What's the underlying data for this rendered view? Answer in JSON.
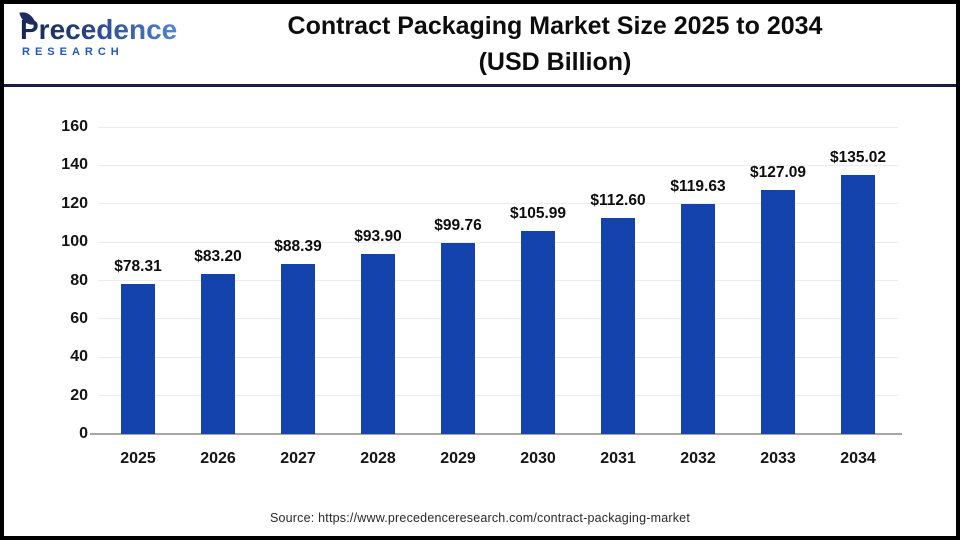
{
  "logo": {
    "brand": "Precedence",
    "sub": "RESEARCH"
  },
  "header": {
    "title_line1": "Contract Packaging Market Size 2025 to 2034",
    "title_line2": "(USD Billion)"
  },
  "source": "Source: https://www.precedenceresearch.com/contract-packaging-market",
  "colors": {
    "bar": "#1543ae",
    "divider": "#1a1a4a",
    "grid": "#ececec",
    "axis": "#a6a6a6",
    "logo_dark": "#1e2c5e",
    "logo_light": "#4e85d8",
    "research_blue": "#2257c4"
  },
  "chart_data": {
    "type": "bar",
    "title": "Contract Packaging Market Size 2025 to 2034 (USD Billion)",
    "categories": [
      "2025",
      "2026",
      "2027",
      "2028",
      "2029",
      "2030",
      "2031",
      "2032",
      "2033",
      "2034"
    ],
    "values": [
      78.31,
      83.2,
      88.39,
      93.9,
      99.76,
      105.99,
      112.6,
      119.63,
      127.09,
      135.02
    ],
    "value_labels": [
      "$78.31",
      "$83.20",
      "$88.39",
      "$93.90",
      "$99.76",
      "$105.99",
      "$112.60",
      "$119.63",
      "$127.09",
      "$135.02"
    ],
    "xlabel": "",
    "ylabel": "",
    "ylim": [
      0,
      160
    ],
    "yticks": [
      0,
      20,
      40,
      60,
      80,
      100,
      120,
      140,
      160
    ],
    "grid": true,
    "legend_position": "none",
    "bar_color": "#1543ae"
  }
}
